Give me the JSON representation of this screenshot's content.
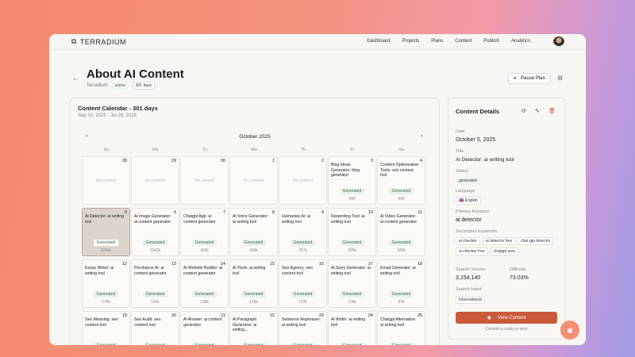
{
  "brand": "TERRADIUM",
  "nav": [
    "Dashboard",
    "Projects",
    "Plans",
    "Content",
    "Publish",
    "Analytics"
  ],
  "page": {
    "title": "About AI Content",
    "project": "Terradium",
    "status": "active",
    "duration": "301 days",
    "pause_label": "Pause Plan"
  },
  "calendar": {
    "title": "Content Calendar - 301 days",
    "range": "Sep 30, 2025 - Jul 28, 2026",
    "month": "October 2025",
    "weekdays": [
      "Su",
      "Mo",
      "Tu",
      "We",
      "Th",
      "Fr",
      "Sa"
    ],
    "empty_label": "No content",
    "days": [
      {
        "d": "28"
      },
      {
        "d": "29"
      },
      {
        "d": "30"
      },
      {
        "d": "1"
      },
      {
        "d": "2"
      },
      {
        "d": "3",
        "t": "Blog Ideas Generator: blog generator",
        "s": "Generated",
        "v": "690"
      },
      {
        "d": "4",
        "t": "Content Optimization Tools: seo content tool",
        "s": "Generated",
        "v": "440"
      },
      {
        "d": "5",
        "t": "Ai Detector: ai writing tool",
        "s": "Generated",
        "v": "3154k",
        "sel": true
      },
      {
        "d": "6",
        "t": "Ai Image Generator: ai content generator",
        "s": "Generated",
        "v": "1262k"
      },
      {
        "d": "7",
        "t": "Chatgpt App: ai content generator",
        "s": "Generated",
        "v": "363k"
      },
      {
        "d": "8",
        "t": "Ai Voice Generator: ai writing tool",
        "s": "Generated",
        "v": "340k"
      },
      {
        "d": "9",
        "t": "Humanize Ai: ai writing tool",
        "s": "Generated",
        "v": "257k"
      },
      {
        "d": "10",
        "t": "Rewording Tool: ai writing tool",
        "s": "Generated",
        "v": "225k"
      },
      {
        "d": "11",
        "t": "Ai Video Generator: ai content generator",
        "s": "Generated",
        "v": "180k"
      },
      {
        "d": "12",
        "t": "Essay Writer: ai writing tool",
        "s": "Generated",
        "v": "178k"
      },
      {
        "d": "13",
        "t": "Perchance Ai: ai content generator",
        "s": "Generated",
        "v": "146k"
      },
      {
        "d": "14",
        "t": "Ai Website Builder: ai content generator",
        "s": "Generated",
        "v": "139k"
      },
      {
        "d": "15",
        "t": "Ai Tools: ai writing tool",
        "s": "Generated",
        "v": "126k"
      },
      {
        "d": "16",
        "t": "Seo Agency: seo content tool",
        "s": "Generated",
        "v": "122k"
      },
      {
        "d": "17",
        "t": "Ai Story Generator: ai writing tool",
        "s": "Generated",
        "v": "118k"
      },
      {
        "d": "18",
        "t": "Email Generator: ai writing tool",
        "s": "Generated",
        "v": "97k"
      },
      {
        "d": "19",
        "t": "Seo Meaning: seo content tool",
        "s": "Generated"
      },
      {
        "d": "20",
        "t": "Seo Audit: seo content tool",
        "s": "Generated"
      },
      {
        "d": "21",
        "t": "Ai Answer: ai content generator",
        "s": "Generated"
      },
      {
        "d": "22",
        "t": "Ai Paragraph Generator: ai writing...",
        "s": "Generated"
      },
      {
        "d": "23",
        "t": "Sentence Rephraser: ai writing tool",
        "s": "Generated"
      },
      {
        "d": "24",
        "t": "Ai Writer: ai writing tool",
        "s": "Generated"
      },
      {
        "d": "25",
        "t": "Chatgpt Alternative: ai writing tool",
        "s": "Generated"
      }
    ]
  },
  "details": {
    "heading": "Content Details",
    "date_label": "Date",
    "date": "October 5, 2025",
    "title_label": "Title",
    "title": "Ai Detector: ai writing tool",
    "status_label": "Status",
    "status": "generated",
    "language_label": "Language",
    "language": "English",
    "pk_label": "Primary Keyword",
    "pk": "ai detector",
    "sk_label": "Secondary Keywords",
    "sk": [
      "ai checker",
      "ai detector free",
      "chat gpt detector",
      "ai checker free",
      "chatgpt zero"
    ],
    "sv_label": "Search Volume",
    "sv": "3,154,140",
    "diff_label": "Difficulty",
    "diff": "73.03%",
    "intent_label": "Search Intent",
    "intent": "Informational",
    "view_label": "View Content",
    "ready": "Content is ready to view"
  },
  "colors": {
    "accent": "#c8593a",
    "generated_bg": "#e9f1ea",
    "selected": "#ddd5cc"
  }
}
